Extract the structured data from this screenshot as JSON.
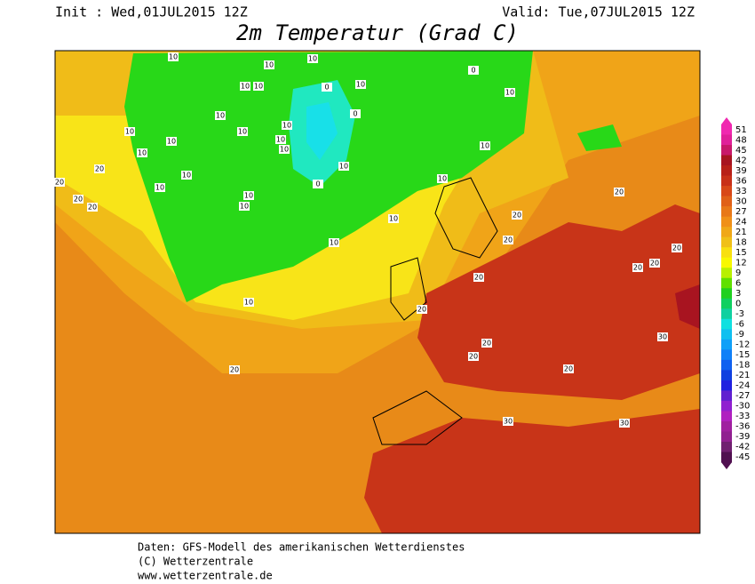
{
  "header": {
    "init": "Init : Wed,01JUL2015 12Z",
    "valid": "Valid: Tue,07JUL2015 12Z",
    "title": "2m Temperatur (Grad C)"
  },
  "colorbar": {
    "ticks": [
      51,
      48,
      45,
      42,
      39,
      36,
      33,
      30,
      27,
      24,
      21,
      18,
      15,
      12,
      9,
      6,
      3,
      0,
      -3,
      -6,
      -9,
      -12,
      -15,
      -18,
      -21,
      -24,
      -27,
      -30,
      -33,
      -36,
      -39,
      -42,
      -45
    ],
    "colors": [
      "#f028b0",
      "#e0209a",
      "#c8186a",
      "#a81420",
      "#b82018",
      "#c83018",
      "#d84818",
      "#e06018",
      "#e87818",
      "#f09018",
      "#f0a818",
      "#f0c018",
      "#f8e010",
      "#f8f800",
      "#b8f000",
      "#60e000",
      "#20d020",
      "#10d060",
      "#10d0a0",
      "#10e0e0",
      "#10c0f0",
      "#10a0f8",
      "#1080f8",
      "#1060f0",
      "#1040e0",
      "#2020e0",
      "#6020d0",
      "#9020d0",
      "#b020c0",
      "#a020a0",
      "#902090",
      "#702070",
      "#501050"
    ]
  },
  "contour_labels": [
    10,
    10,
    10,
    10,
    10,
    10,
    10,
    10,
    10,
    10,
    10,
    10,
    10,
    10,
    10,
    10,
    10,
    10,
    10,
    10,
    10,
    10,
    10,
    10,
    10,
    0,
    0,
    0,
    0,
    20,
    20,
    20,
    20,
    20,
    20,
    20,
    20,
    20,
    20,
    20,
    20,
    20,
    20,
    20,
    20,
    30,
    30,
    30
  ],
  "footer": {
    "line1": "Daten: GFS-Modell des amerikanischen Wetterdienstes",
    "line2": "(C) Wetterzentrale",
    "line3": "www.wetterzentrale.de"
  }
}
